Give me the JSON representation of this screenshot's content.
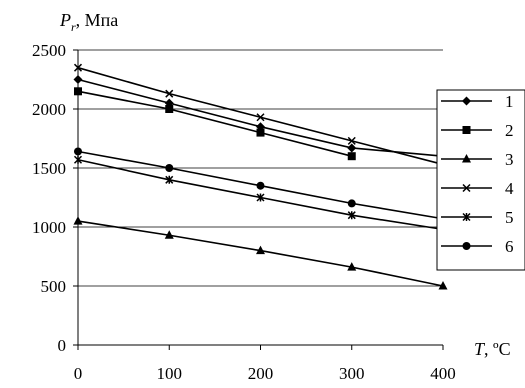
{
  "chart_data": {
    "type": "line",
    "ylabel": {
      "main": "P",
      "sub": "r",
      "unit": ", Мпа"
    },
    "xlabel": {
      "main": "T",
      "unit": ", ºC"
    },
    "x": [
      0,
      100,
      200,
      300,
      400
    ],
    "xlim": [
      0,
      400
    ],
    "ylim": [
      0,
      2500
    ],
    "xticks": [
      "0",
      "100",
      "200",
      "300",
      "400"
    ],
    "yticks": [
      "0",
      "500",
      "1000",
      "1500",
      "2000",
      "2500"
    ],
    "grid": "horizontal",
    "legend_position": "right",
    "series": [
      {
        "name": "1",
        "marker": "diamond",
        "values": [
          2250,
          2050,
          1850,
          1670,
          1600
        ]
      },
      {
        "name": "2",
        "marker": "square",
        "values": [
          2150,
          2000,
          1800,
          1600,
          null
        ]
      },
      {
        "name": "3",
        "marker": "triangle",
        "values": [
          1050,
          930,
          800,
          660,
          500
        ]
      },
      {
        "name": "4",
        "marker": "x",
        "values": [
          2350,
          2130,
          1930,
          1730,
          1530
        ]
      },
      {
        "name": "5",
        "marker": "star",
        "values": [
          1570,
          1400,
          1250,
          1100,
          980
        ]
      },
      {
        "name": "6",
        "marker": "circle",
        "values": [
          1640,
          1500,
          1350,
          1200,
          1070
        ]
      }
    ]
  }
}
